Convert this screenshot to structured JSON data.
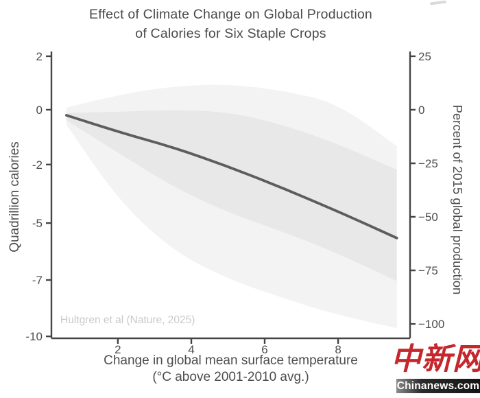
{
  "titles": {
    "line1": "Effect of Climate Change on Global Production",
    "line2": "of Calories for Six Staple Crops"
  },
  "axes": {
    "left": {
      "label": "Quadrillion calories",
      "ticks": [
        {
          "label": "2",
          "pct": 25
        },
        {
          "label": "0",
          "pct": 0
        },
        {
          "label": "-2",
          "pct": -25.6
        },
        {
          "label": "-5",
          "pct": -52.9
        },
        {
          "label": "-7",
          "pct": -79.5
        },
        {
          "label": "-10",
          "pct": -105.8
        }
      ]
    },
    "right": {
      "label": "Percent of 2015 global production",
      "ticks": [
        {
          "label": "25",
          "pct": 25
        },
        {
          "label": "0",
          "pct": 0
        },
        {
          "label": "−25",
          "pct": -25
        },
        {
          "label": "−50",
          "pct": -50
        },
        {
          "label": "−75",
          "pct": -75
        },
        {
          "label": "−100",
          "pct": -100
        }
      ]
    },
    "x": {
      "label_line1": "Change in global mean surface temperature",
      "label_line2": "(°C above 2001-2010 avg.)",
      "ticks": [
        {
          "label": "2",
          "t": 2
        },
        {
          "label": "4",
          "t": 4
        },
        {
          "label": "6",
          "t": 6
        },
        {
          "label": "8",
          "t": 8
        }
      ]
    }
  },
  "annotation": "Hultgren et al (Nature, 2025)",
  "watermark": {
    "cn": "中新网",
    "en": "Chinanews.com"
  },
  "colors": {
    "line": "#5d5d5d",
    "inner_band": "#e8e8e8",
    "outer_band": "#f3f3f3",
    "spine": "#454545",
    "tick_text": "#4d4d4d",
    "title_text": "#4a4a4a",
    "annotation_text": "#c9c9c9",
    "watermark_red": "#c5272d"
  },
  "chart_data": {
    "type": "line",
    "title": "Effect of Climate Change on Global Production of Calories for Six Staple Crops",
    "xlabel": "Change in global mean surface temperature (°C above 2001-2010 avg.)",
    "ylabel_left": "Quadrillion calories",
    "ylabel_right": "Percent of 2015 global production",
    "source": "Hultgren et al (Nature, 2025)",
    "x_unit": "degrees C above 2001-2010 average",
    "y_unit": "percent of 2015 global production",
    "x": [
      0.6,
      2,
      3.5,
      5,
      6.5,
      8,
      9.6
    ],
    "series": [
      {
        "name": "central estimate",
        "values": [
          -2.6,
          -10.3,
          -17.5,
          -26.5,
          -36.6,
          -47.5,
          -59.9
        ]
      },
      {
        "name": "inner band upper",
        "values": [
          -1.5,
          -1,
          0,
          -1,
          -7,
          -16,
          -28
        ]
      },
      {
        "name": "inner band lower",
        "values": [
          -5,
          -20,
          -36,
          -48,
          -57,
          -67,
          -80
        ]
      },
      {
        "name": "outer band upper",
        "values": [
          1,
          7,
          11,
          12,
          9,
          3,
          -17
        ]
      },
      {
        "name": "outer band lower",
        "values": [
          -7,
          -42,
          -66,
          -79,
          -88,
          -96,
          -102
        ]
      }
    ],
    "central_estimate_quadrillion_calories": [
      -0.25,
      -1.0,
      -1.7,
      -2.6,
      -3.6,
      -4.6,
      -5.8
    ],
    "x_range": [
      0.19,
      9.96
    ],
    "pct_range": [
      -106.7,
      27.2
    ],
    "grid": false,
    "legend": "none"
  }
}
